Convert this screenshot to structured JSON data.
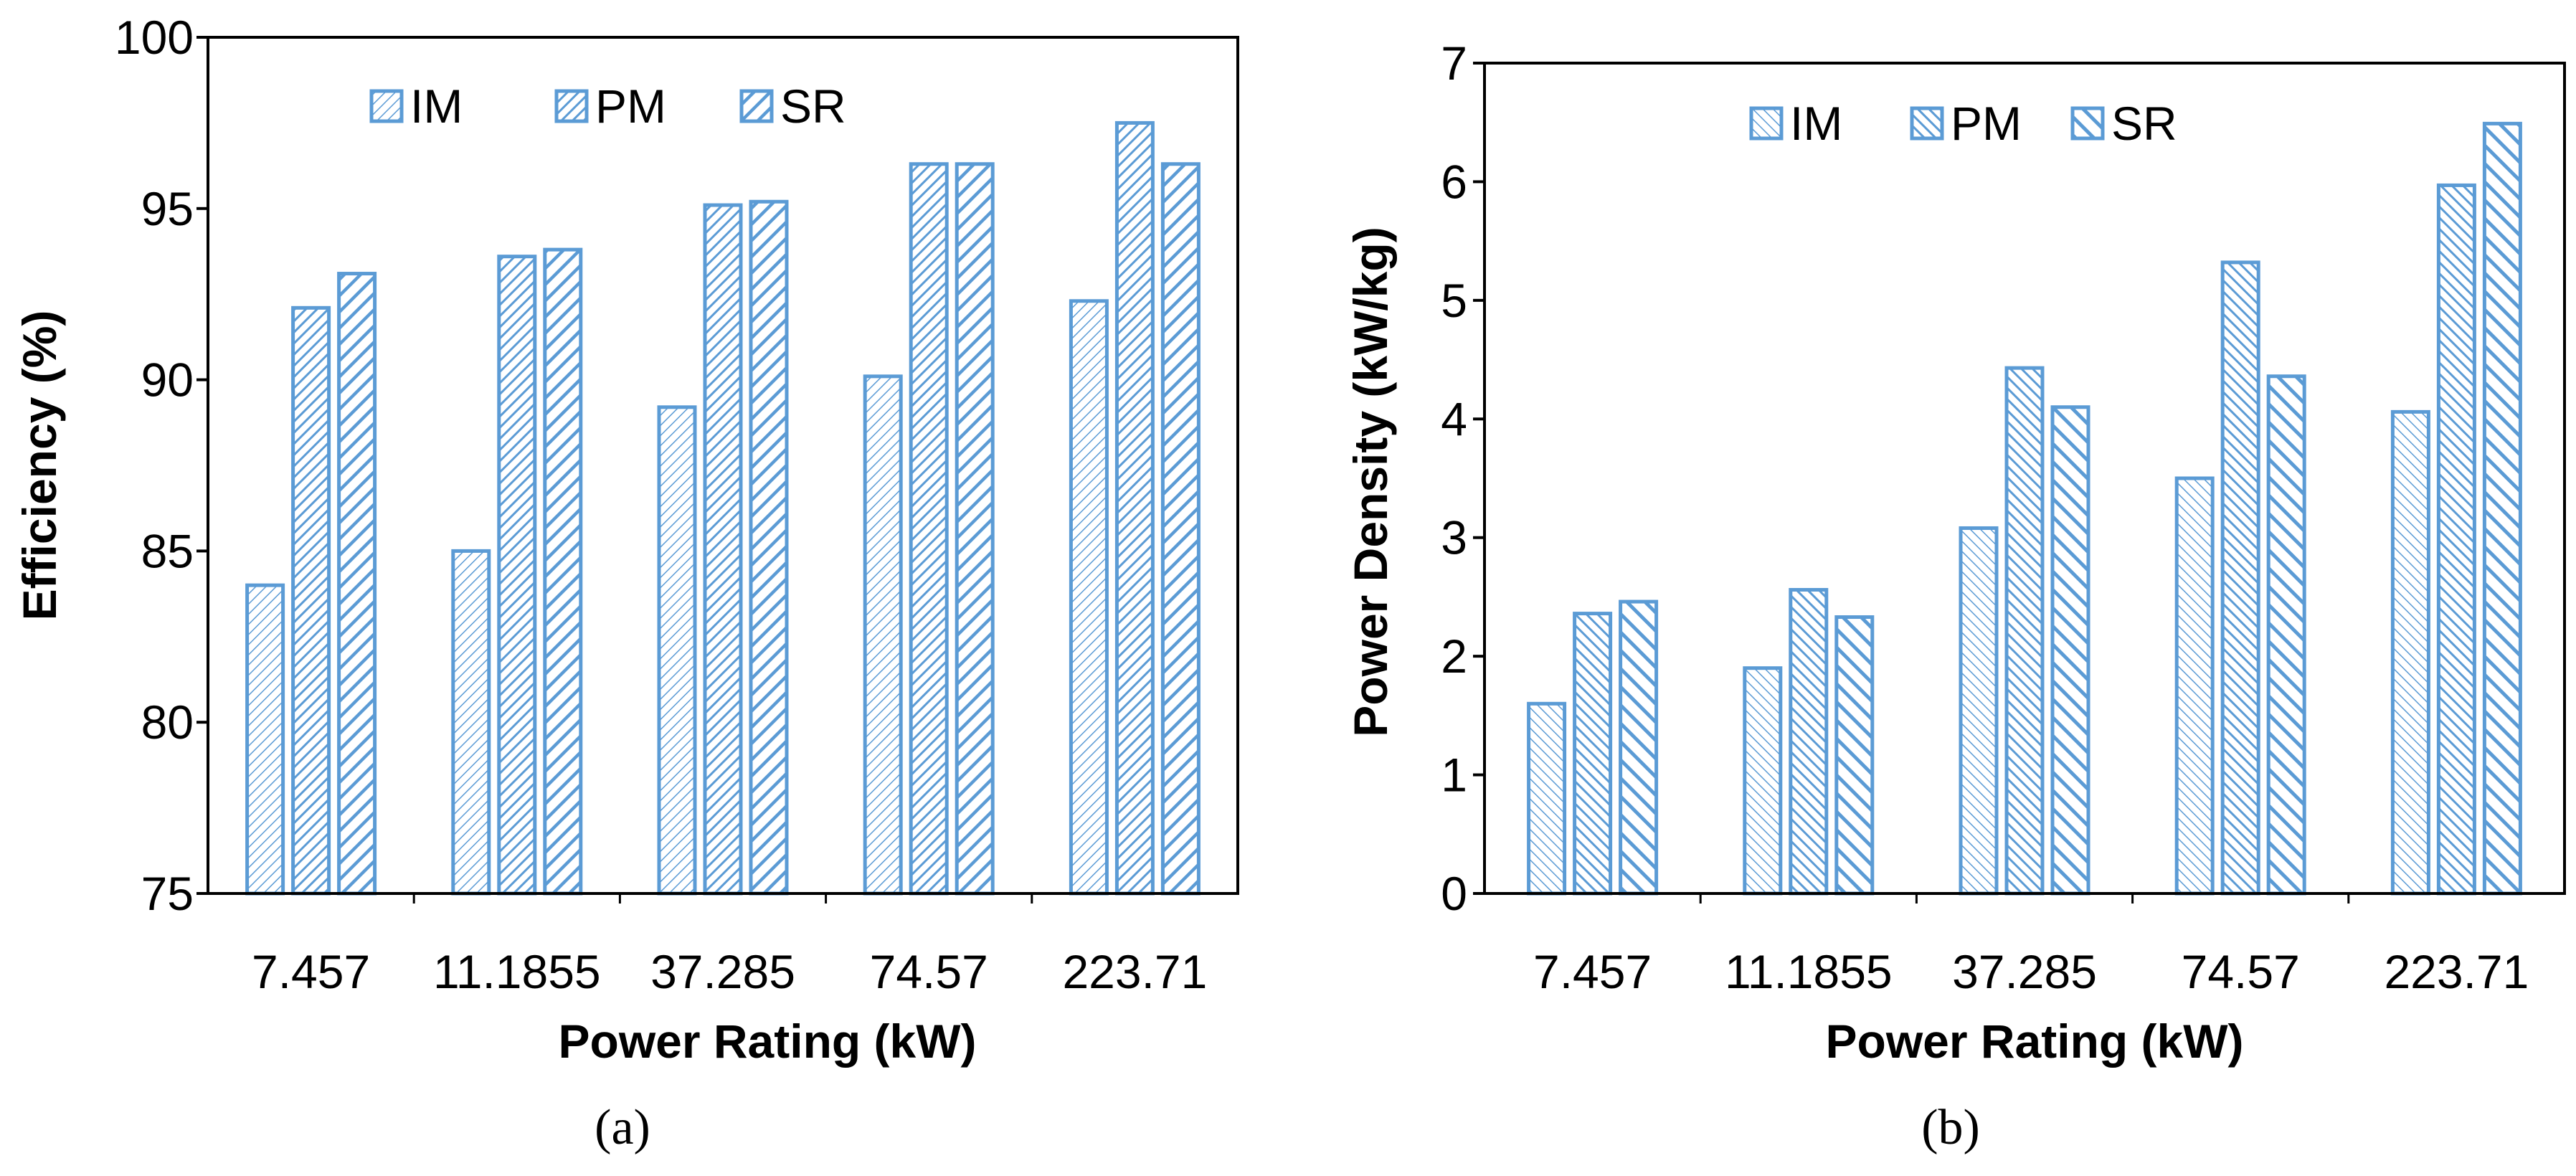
{
  "colors": {
    "bar_stroke": "#5b9bd5",
    "hatch": "#5b9bd5",
    "background": "#ffffff",
    "axis": "#000000"
  },
  "chart_data": [
    {
      "type": "bar",
      "categories": [
        "7.457",
        "11.1855",
        "37.285",
        "74.57",
        "223.71"
      ],
      "series": [
        {
          "name": "IM",
          "values": [
            84.0,
            85.0,
            89.2,
            90.1,
            92.3
          ]
        },
        {
          "name": "PM",
          "values": [
            92.1,
            93.6,
            95.1,
            96.3,
            97.5
          ]
        },
        {
          "name": "SR",
          "values": [
            93.1,
            93.8,
            95.2,
            96.3,
            96.3
          ]
        }
      ],
      "xlabel": "Power Rating (kW)",
      "ylabel": "Efficiency (%)",
      "ylim": [
        75,
        100
      ],
      "yticks": [
        "75",
        "80",
        "85",
        "90",
        "95",
        "100"
      ],
      "legend": "top-left",
      "caption": "(a)"
    },
    {
      "type": "bar",
      "categories": [
        "7.457",
        "11.1855",
        "37.285",
        "74.57",
        "223.71"
      ],
      "series": [
        {
          "name": "IM",
          "values": [
            1.6,
            1.9,
            3.08,
            3.5,
            4.06
          ]
        },
        {
          "name": "PM",
          "values": [
            2.36,
            2.56,
            4.43,
            5.32,
            5.97
          ]
        },
        {
          "name": "SR",
          "values": [
            2.46,
            2.33,
            4.1,
            4.36,
            6.49
          ]
        }
      ],
      "xlabel": "Power Rating (kW)",
      "ylabel": "Power Density (kW/kg)",
      "ylim": [
        0,
        7
      ],
      "yticks": [
        "0",
        "1",
        "2",
        "3",
        "4",
        "5",
        "6",
        "7"
      ],
      "legend": "top-center",
      "caption": "(b)"
    }
  ]
}
